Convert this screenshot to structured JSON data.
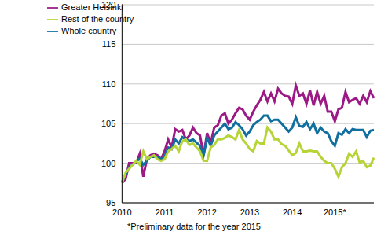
{
  "chart_data": {
    "type": "line",
    "caption": "*Preliminary data for the year 2015",
    "categories": [
      "2010",
      null,
      null,
      null,
      null,
      null,
      null,
      null,
      null,
      null,
      null,
      null,
      "2011",
      null,
      null,
      null,
      null,
      null,
      null,
      null,
      null,
      null,
      null,
      null,
      "2012",
      null,
      null,
      null,
      null,
      null,
      null,
      null,
      null,
      null,
      null,
      null,
      "2013",
      null,
      null,
      null,
      null,
      null,
      null,
      null,
      null,
      null,
      null,
      null,
      "2014",
      null,
      null,
      null,
      null,
      null,
      null,
      null,
      null,
      null,
      null,
      null,
      "2015*",
      null,
      null,
      null,
      null,
      null,
      null,
      null,
      null,
      null,
      null,
      null
    ],
    "series": [
      {
        "name": "Greater Helsinki",
        "color": "#9c1a86",
        "values": [
          97.5,
          98,
          100,
          100,
          100,
          101.2,
          98.3,
          100.5,
          101,
          101.2,
          101,
          100.5,
          101.5,
          103,
          102,
          104.3,
          104,
          104.2,
          103,
          103.5,
          104.5,
          103.8,
          103.5,
          101,
          103.8,
          102.5,
          104.5,
          104.8,
          106,
          106.3,
          105,
          105.5,
          106.3,
          107,
          106.8,
          106,
          105.5,
          106.5,
          107.3,
          108,
          109,
          107.8,
          108.8,
          107.8,
          109.4,
          108.8,
          108.5,
          108.4,
          107.5,
          109.8,
          108.5,
          108.8,
          107.5,
          109.2,
          107.3,
          109,
          107.5,
          108.5,
          106.5,
          106.5,
          105.3,
          106.8,
          107,
          109,
          107.7,
          108,
          108.2,
          107.5,
          108.5,
          107.7,
          109.1,
          108.2
        ]
      },
      {
        "name": "Whole country",
        "color": "#106f9e",
        "values": [
          97.6,
          98.5,
          99.5,
          99.8,
          100.2,
          100.6,
          99.8,
          100.3,
          100.8,
          100.8,
          100.8,
          100.5,
          100.8,
          102,
          101.8,
          103,
          102.5,
          103.3,
          103,
          102.8,
          103,
          102.6,
          102.2,
          101,
          103.2,
          102.2,
          103.5,
          104,
          104.5,
          105,
          104.3,
          104.5,
          105.2,
          104.8,
          104.3,
          103.5,
          104,
          104.8,
          105.2,
          105.5,
          106,
          106,
          105.3,
          105.5,
          105.5,
          105,
          104.5,
          104,
          104.5,
          105.8,
          104.7,
          104.6,
          105.2,
          104.3,
          105,
          103.8,
          104.5,
          104,
          103.8,
          102.8,
          102.2,
          103.8,
          103.6,
          104.3,
          103.8,
          104.3,
          104.2,
          104.2,
          104.2,
          103.3,
          104.1,
          104.2
        ]
      },
      {
        "name": "Rest of the country",
        "color": "#b6d436",
        "values": [
          97.5,
          98.8,
          99.3,
          99.8,
          100.3,
          99.8,
          101.5,
          100.5,
          100.8,
          101,
          100.5,
          100.3,
          100.5,
          101.5,
          101.8,
          102.2,
          101.5,
          102.8,
          103,
          102.3,
          102.5,
          102,
          101.5,
          100.3,
          100.3,
          102,
          102.3,
          103,
          103,
          103.2,
          103.5,
          103.3,
          103,
          104.2,
          103,
          102.5,
          101.8,
          101.5,
          102.8,
          102.5,
          102.5,
          104.5,
          104,
          103,
          103,
          102.4,
          102.2,
          101.6,
          101,
          101.3,
          102.5,
          101.5,
          101.5,
          101.6,
          101.5,
          101.5,
          100.8,
          100.3,
          100,
          100,
          99.3,
          98.3,
          99.5,
          100,
          101.2,
          100.8,
          101.5,
          100.1,
          100.3,
          99.5,
          99.7,
          100.7
        ]
      }
    ],
    "ylim": [
      95,
      120
    ],
    "yticks": [
      95,
      100,
      105,
      110,
      115,
      120
    ],
    "grid": true,
    "legend": "upper left"
  }
}
